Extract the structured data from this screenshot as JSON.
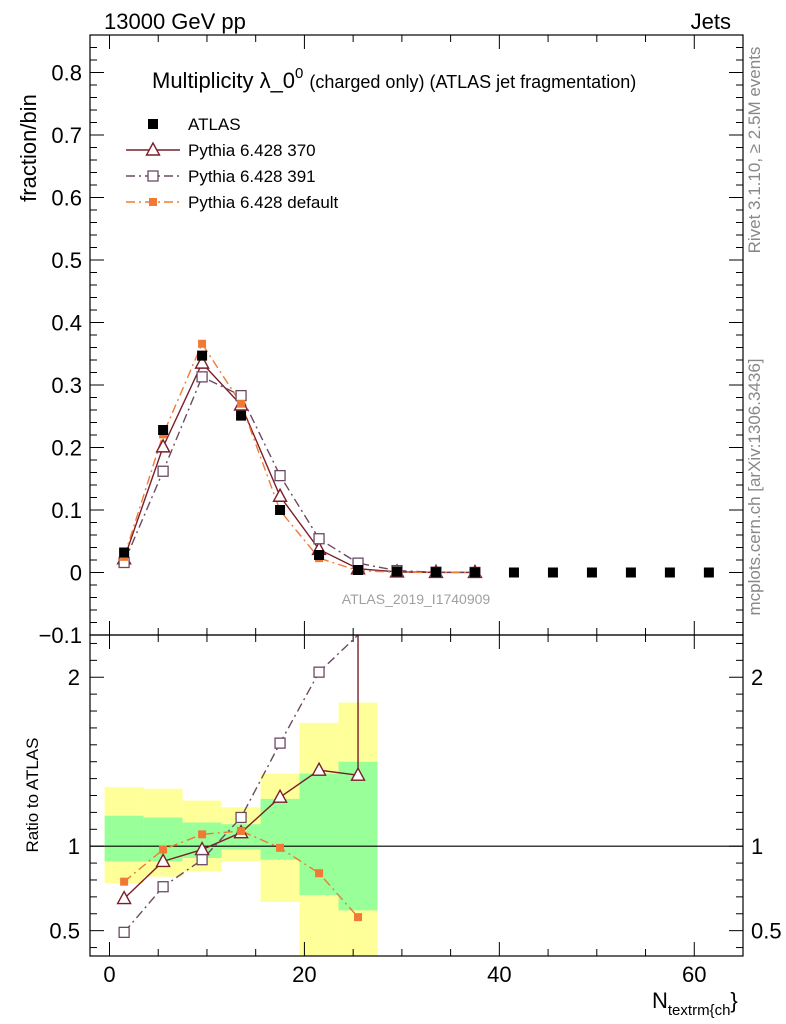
{
  "header": {
    "left": "13000 GeV pp",
    "right": "Jets"
  },
  "side_text": {
    "top": "Rivet 3.1.10, ≥ 2.5M events",
    "bottom": "mcplots.cern.ch [arXiv:1306.3436]"
  },
  "watermark": "ATLAS_2019_I1740909",
  "chart_data": [
    {
      "type": "scatter",
      "panel": "main",
      "title_main": "Multiplicity λ_0",
      "title_sup": "0",
      "title_tail": "(charged only) (ATLAS jet fragmentation)",
      "ylabel": "fraction/bin",
      "xlim": [
        -2,
        65
      ],
      "ylim": [
        -0.1,
        0.86
      ],
      "yticks": [
        -0.1,
        0,
        0.1,
        0.2,
        0.3,
        0.4,
        0.5,
        0.6,
        0.7,
        0.8
      ],
      "ytick_labels": [
        "−0.1",
        "0",
        "0.1",
        "0.2",
        "0.3",
        "0.4",
        "0.5",
        "0.6",
        "0.7",
        "0.8"
      ],
      "x": [
        1.5,
        5.5,
        9.5,
        13.5,
        17.5,
        21.5,
        25.5,
        29.5,
        33.5,
        37.5,
        41.5,
        45.5,
        49.5,
        53.5,
        57.5,
        61.5
      ],
      "series": [
        {
          "name": "ATLAS",
          "color": "#000000",
          "marker": "filled-square",
          "line": "none",
          "values": [
            0.032,
            0.228,
            0.347,
            0.251,
            0.1,
            0.028,
            0.004,
            0.0015,
            0.0005,
            0.0002,
            0,
            0,
            0,
            0,
            0,
            0
          ]
        },
        {
          "name": "Pythia 6.428 370",
          "color": "#7b1e2a",
          "marker": "open-triangle",
          "line": "solid",
          "values": [
            0.022,
            0.201,
            0.335,
            0.268,
            0.122,
            0.037,
            0.006,
            0.001,
            0.0002,
            0.0001
          ]
        },
        {
          "name": "Pythia 6.428 391",
          "color": "#6b4a63",
          "marker": "open-square",
          "line": "dashdot",
          "values": [
            0.016,
            0.162,
            0.313,
            0.283,
            0.155,
            0.054,
            0.015,
            0.003,
            0.0005,
            0.0001
          ]
        },
        {
          "name": "Pythia 6.428 default",
          "color": "#f07a35",
          "marker": "small-filled-square",
          "line": "dashdot",
          "values": [
            0.025,
            0.221,
            0.366,
            0.27,
            0.099,
            0.023,
            0.003,
            0.0004,
            0.0001,
            2e-05
          ]
        }
      ]
    },
    {
      "type": "line",
      "panel": "ratio",
      "ylabel": "Ratio to ATLAS",
      "xlabel": "N",
      "xlabel_sub": "textrm{ch",
      "xlabel_tail": "}",
      "xlim": [
        -2,
        65
      ],
      "ylim": [
        0.35,
        2.25
      ],
      "xticks": [
        0,
        20,
        40,
        60
      ],
      "xtick_labels": [
        "0",
        "20",
        "40",
        "60"
      ],
      "yticks": [
        0.5,
        1,
        2
      ],
      "ytick_labels": [
        "0.5",
        "1",
        "2"
      ],
      "bands": {
        "edges": [
          -0.5,
          3.5,
          7.5,
          11.5,
          15.5,
          19.5,
          23.5,
          27.5
        ],
        "outer": {
          "color": "#ffff99",
          "low": [
            0.78,
            0.82,
            0.85,
            0.91,
            0.67,
            0.35,
            0.35
          ],
          "high": [
            1.35,
            1.34,
            1.27,
            1.23,
            1.43,
            1.73,
            1.85
          ]
        },
        "inner": {
          "color": "#99ff99",
          "low": [
            0.91,
            0.91,
            0.93,
            0.98,
            0.92,
            0.71,
            0.62
          ],
          "high": [
            1.18,
            1.17,
            1.14,
            1.13,
            1.28,
            1.43,
            1.5
          ]
        }
      },
      "x": [
        1.5,
        5.5,
        9.5,
        13.5,
        17.5,
        21.5,
        25.5
      ],
      "series": [
        {
          "name": "Pythia 6.428 370",
          "color": "#7b1e2a",
          "marker": "open-triangle",
          "line": "solid",
          "values": [
            0.69,
            0.91,
            0.98,
            1.08,
            1.29,
            1.45,
            1.42
          ],
          "drop_line_value": 2.25
        },
        {
          "name": "Pythia 6.428 391",
          "color": "#6b4a63",
          "marker": "open-square",
          "line": "dashdot",
          "values": [
            0.49,
            0.76,
            0.92,
            1.17,
            1.61,
            2.03,
            2.25
          ]
        },
        {
          "name": "Pythia 6.428 default",
          "color": "#f07a35",
          "marker": "small-filled-square",
          "line": "dashdot",
          "values": [
            0.79,
            0.98,
            1.07,
            1.09,
            0.99,
            0.84,
            0.58
          ]
        }
      ]
    }
  ]
}
